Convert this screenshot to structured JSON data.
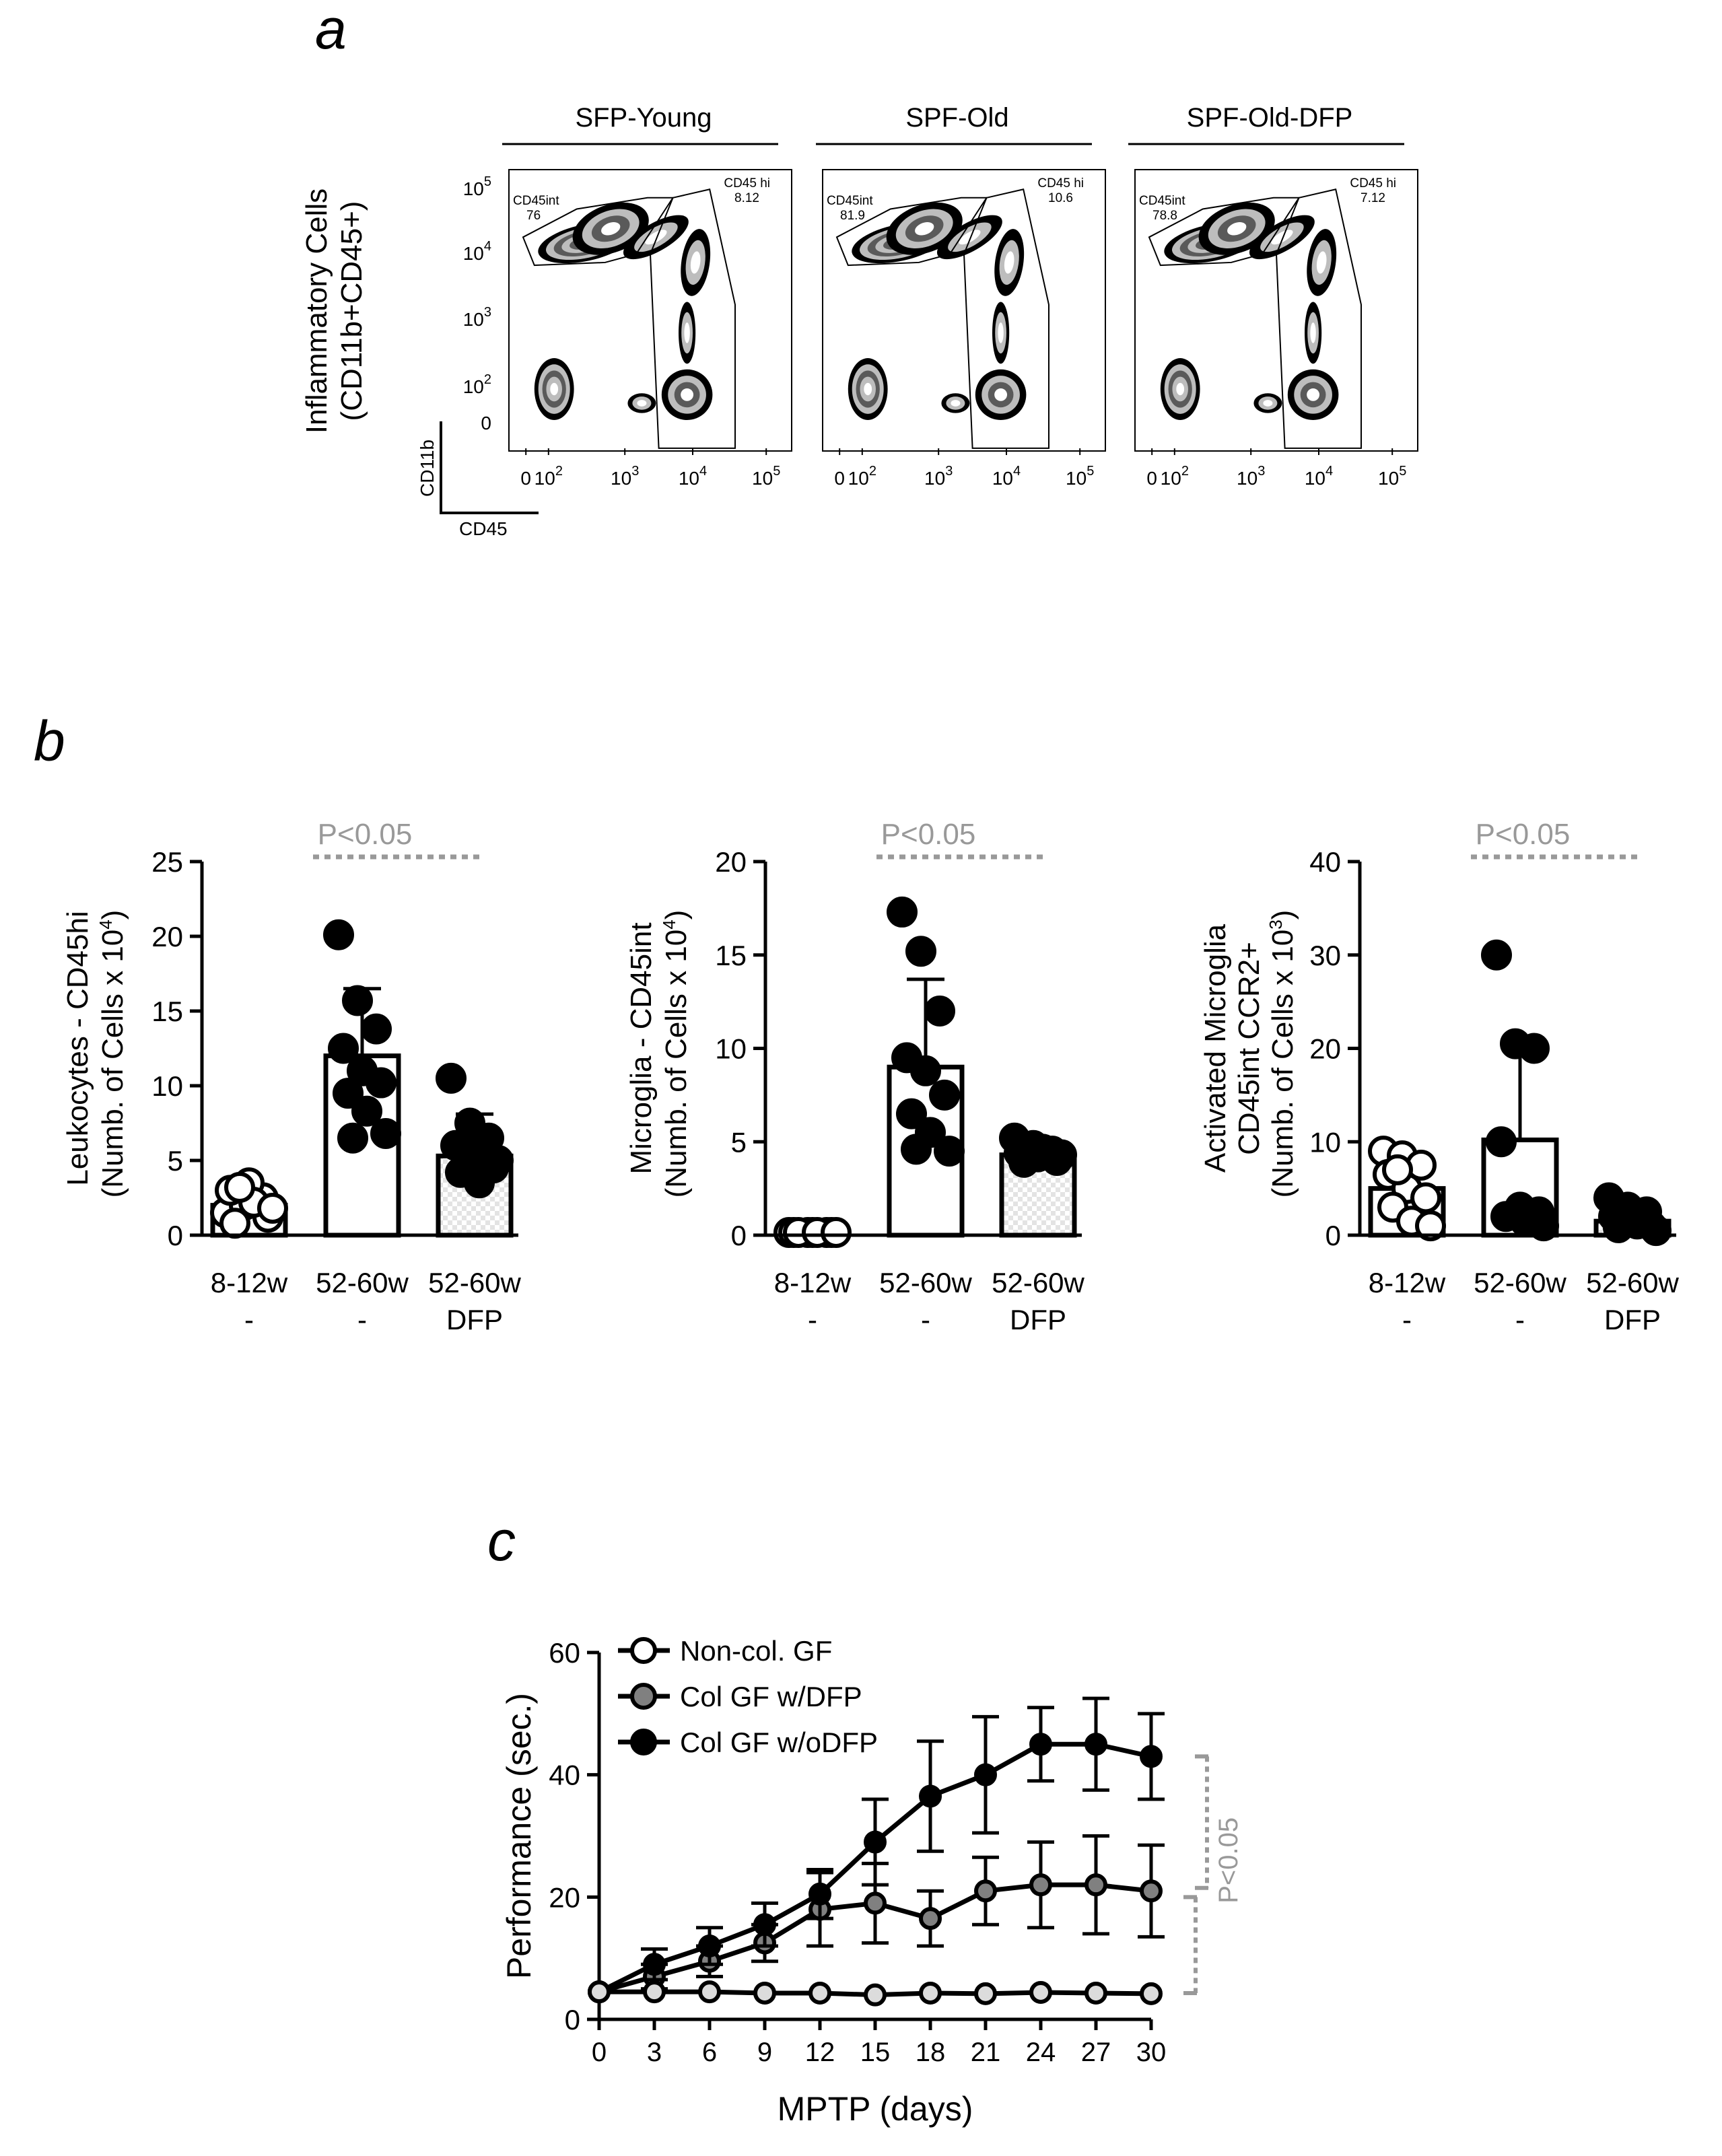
{
  "panel_labels": [
    "a",
    "b",
    "c"
  ],
  "chart_data": [
    {
      "id": "a",
      "type": "flow-cytometry",
      "ylabel_line1": "Inflammatory Cells",
      "ylabel_line2": "(CD11b+CD45+)",
      "x_param": "CD45",
      "y_param": "CD11b",
      "x_ticks": [
        "0",
        "10",
        "10",
        "10",
        "10"
      ],
      "x_exps": [
        "",
        "2",
        "3",
        "4",
        "5"
      ],
      "y_ticks": [
        "10",
        "10",
        "10",
        "10",
        "0"
      ],
      "y_exps": [
        "5",
        "4",
        "3",
        "2",
        ""
      ],
      "panels": [
        {
          "title": "SFP-Young",
          "gate_int_label": "CD45int",
          "gate_int_value": "76",
          "gate_hi_label": "CD45 hi",
          "gate_hi_value": "8.12"
        },
        {
          "title": "SPF-Old",
          "gate_int_label": "CD45int",
          "gate_int_value": "81.9",
          "gate_hi_label": "CD45 hi",
          "gate_hi_value": "10.6"
        },
        {
          "title": "SPF-Old-DFP",
          "gate_int_label": "CD45int",
          "gate_int_value": "78.8",
          "gate_hi_label": "CD45 hi",
          "gate_hi_value": "7.12"
        }
      ]
    },
    {
      "id": "b",
      "type": "bar",
      "categories": [
        "8-12w",
        "52-60w",
        "52-60w"
      ],
      "treatments": [
        "-",
        "-",
        "DFP"
      ],
      "significance": "P<0.05",
      "panels": [
        {
          "ylabel_line1": "Leukocytes - CD45hi",
          "ylabel_line2": "(Numb. of Cells x 10",
          "ylabel_exp": "4",
          "ylim": [
            0,
            25
          ],
          "yticks": [
            0,
            5,
            10,
            15,
            20,
            25
          ],
          "means": [
            2.0,
            12.0,
            5.3
          ],
          "sd": [
            1.0,
            4.5,
            2.8
          ],
          "points": [
            [
              1.5,
              2.0,
              2.5,
              3.0,
              3.5,
              1.2,
              0.8,
              2.2,
              1.8,
              3.2
            ],
            [
              20.1,
              15.7,
              13.8,
              12.5,
              11.0,
              10.2,
              9.5,
              8.3,
              6.8,
              6.5
            ],
            [
              10.5,
              7.5,
              6.5,
              6.0,
              5.5,
              4.5,
              4.2,
              3.5,
              5.0,
              6.2
            ]
          ]
        },
        {
          "ylabel_line1": "Microglia - CD45int",
          "ylabel_line2": "(Numb. of Cells x 10",
          "ylabel_exp": "4",
          "ylim": [
            0,
            20
          ],
          "yticks": [
            0,
            5,
            10,
            15,
            20
          ],
          "means": [
            0.0,
            9.0,
            4.3
          ],
          "sd": [
            0.1,
            4.7,
            0.6
          ],
          "points": [
            [
              0.05,
              0.05,
              0.05,
              0.05,
              0.05,
              0.05,
              0.05,
              0.05,
              0.05
            ],
            [
              17.3,
              15.2,
              12.0,
              9.5,
              8.8,
              7.5,
              6.5,
              5.5,
              4.5,
              4.6
            ],
            [
              5.2,
              4.8,
              4.5,
              4.4,
              4.2,
              4.0,
              3.9,
              4.6,
              4.3,
              4.1
            ]
          ]
        },
        {
          "ylabel_line1": "Activated Microglia",
          "ylabel_line2": "CD45int CCR2+",
          "ylabel_line3": "(Numb. of Cells x 10",
          "ylabel_exp": "3",
          "ylim": [
            0,
            40
          ],
          "yticks": [
            0,
            10,
            20,
            30,
            40
          ],
          "means": [
            5.0,
            10.2,
            1.5
          ],
          "sd": [
            2.5,
            10.0,
            1.0
          ],
          "points": [
            [
              9.0,
              8.5,
              7.5,
              6.5,
              5.0,
              4.0,
              3.0,
              1.5,
              1.0,
              7.0
            ],
            [
              30.0,
              20.5,
              20.0,
              10.0,
              3.0,
              2.5,
              2.0,
              1.5,
              1.0
            ],
            [
              4.0,
              3.0,
              2.5,
              2.0,
              1.5,
              1.0,
              0.8,
              1.2,
              0.5
            ]
          ]
        }
      ]
    },
    {
      "id": "c",
      "type": "line",
      "xlabel": "MPTP (days)",
      "ylabel": "Performance (sec.)",
      "xlim": [
        0,
        30
      ],
      "ylim": [
        0,
        60
      ],
      "x": [
        0,
        3,
        6,
        9,
        12,
        15,
        18,
        21,
        24,
        27,
        30
      ],
      "yticks": [
        0,
        20,
        40,
        60
      ],
      "significance": "P<0.05",
      "series": [
        {
          "name": "Non-col. GF",
          "fill": "#ffffff",
          "values": [
            4.5,
            4.5,
            4.5,
            4.3,
            4.3,
            4.0,
            4.3,
            4.2,
            4.4,
            4.3,
            4.2
          ],
          "errors": [
            0.4,
            0.4,
            0.4,
            0.4,
            0.4,
            0.4,
            0.4,
            0.4,
            0.4,
            0.4,
            0.4
          ]
        },
        {
          "name": "Col GF w/DFP",
          "fill": "#808080",
          "values": [
            4.5,
            7.0,
            9.5,
            12.5,
            18.0,
            19.0,
            16.5,
            21.0,
            22.0,
            22.0,
            21.0
          ],
          "errors": [
            0.5,
            2.0,
            2.5,
            3.0,
            6.0,
            6.5,
            4.5,
            5.5,
            7.0,
            8.0,
            7.5
          ]
        },
        {
          "name": "Col GF w/oDFP",
          "fill": "#000000",
          "values": [
            4.5,
            9.0,
            12.0,
            15.5,
            20.5,
            29.0,
            36.5,
            40.0,
            45.0,
            45.0,
            43.0
          ],
          "errors": [
            0.5,
            2.5,
            3.0,
            3.5,
            4.0,
            7.0,
            9.0,
            9.5,
            6.0,
            7.5,
            7.0
          ]
        }
      ]
    }
  ]
}
